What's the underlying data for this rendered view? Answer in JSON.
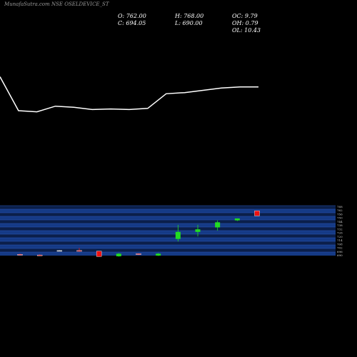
{
  "header": {
    "title": "MunafaSutra.com NSE OSELDEVICE_ST",
    "open_label": "O: 762.00",
    "high_label": "H: 768.00",
    "close_label": "C: 694.05",
    "low_label": "L: 690.00",
    "oc_label": "OC: 9.79",
    "oh_label": "OH: 0.79",
    "ol_label": "OL: 10.43"
  },
  "colors": {
    "background": "#000000",
    "line": "#ffffff",
    "band_a": "#0b1f4a",
    "band_b": "#153a86",
    "band_grid": "#2d56b6",
    "up": "#22dd22",
    "down": "#ee1111",
    "neutral": "#d8d8d8"
  },
  "chart_data": [
    {
      "type": "line",
      "title": "",
      "xlabel": "",
      "ylabel": "",
      "grid": false,
      "series": [
        {
          "values": [
            790,
            760,
            759,
            764,
            763,
            761,
            761.5,
            761,
            762,
            775,
            776,
            778,
            780,
            781,
            781
          ]
        }
      ],
      "ylim": [
        700,
        820
      ]
    },
    {
      "type": "candlestick",
      "title": "",
      "xlabel": "",
      "ylabel": "",
      "grid": true,
      "ylim": [
        690,
        768
      ],
      "candles": [
        {
          "open": 692,
          "high": 693,
          "low": 691,
          "close": 691
        },
        {
          "open": 691,
          "high": 692,
          "low": 690,
          "close": 690.5
        },
        {
          "open": 698,
          "high": 698.5,
          "low": 697,
          "close": 698
        },
        {
          "open": 698,
          "high": 702,
          "low": 696,
          "close": 697
        },
        {
          "open": 697,
          "high": 697.5,
          "low": 688,
          "close": 688.5
        },
        {
          "open": 689,
          "high": 694,
          "low": 688.5,
          "close": 693
        },
        {
          "open": 693,
          "high": 693.5,
          "low": 691,
          "close": 692
        },
        {
          "open": 690,
          "high": 694,
          "low": 689.5,
          "close": 693
        },
        {
          "open": 716,
          "high": 738,
          "low": 712,
          "close": 727
        },
        {
          "open": 727,
          "high": 738,
          "low": 720,
          "close": 731
        },
        {
          "open": 734,
          "high": 745,
          "low": 729,
          "close": 742
        },
        {
          "open": 745,
          "high": 748,
          "low": 744,
          "close": 748
        },
        {
          "open": 760,
          "high": 760.5,
          "low": 752,
          "close": 752
        }
      ],
      "y_ticks": [
        "768",
        "762",
        "756",
        "750",
        "744",
        "738",
        "732",
        "726",
        "720",
        "714",
        "708",
        "702",
        "696",
        "690"
      ]
    }
  ]
}
